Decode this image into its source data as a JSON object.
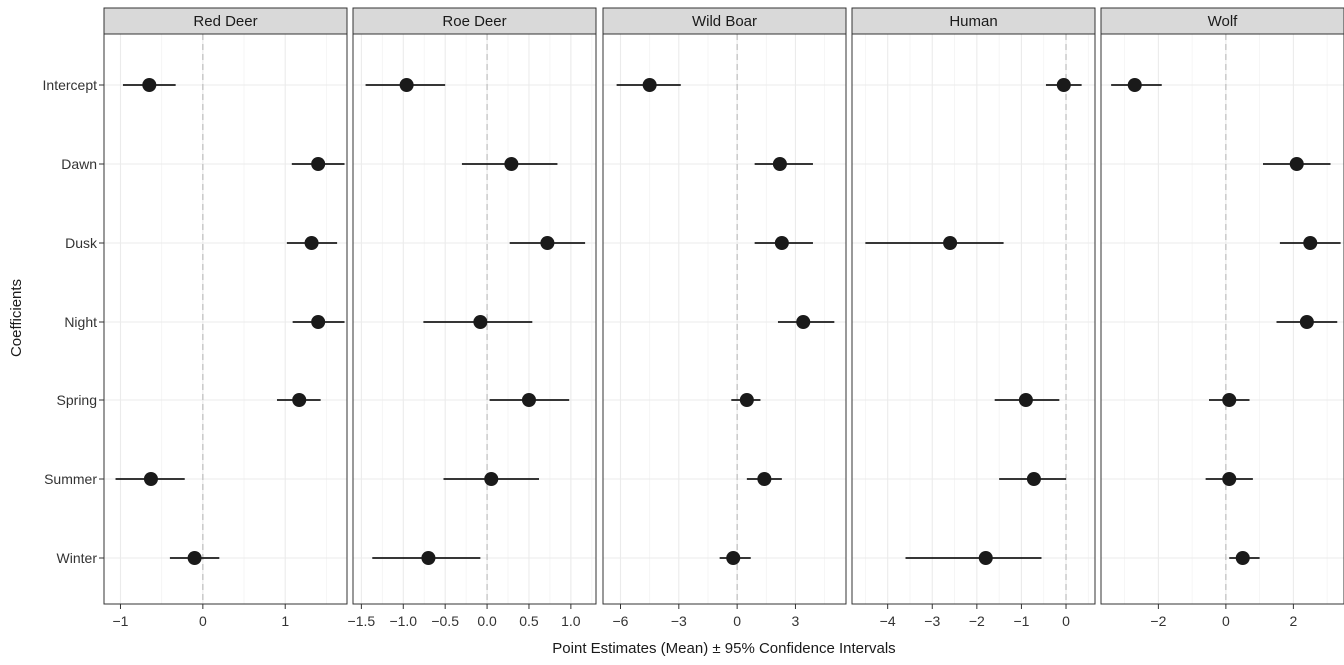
{
  "chart_data": {
    "type": "scatter",
    "subtype": "facetted coefficient plot with horizontal error bars",
    "xlabel": "Point Estimates (Mean) ± 95% Confidence Intervals",
    "ylabel": "Coefficients",
    "categories": [
      "Intercept",
      "Dawn",
      "Dusk",
      "Night",
      "Spring",
      "Summer",
      "Winter"
    ],
    "reference_line_x": 0,
    "grid": true,
    "legend": "none",
    "colors": {
      "point": "#1a1a1a",
      "strip_fill": "#d9d9d9",
      "grid": "#ebebeb",
      "reference": "#bdbdbd"
    },
    "facets": [
      {
        "title": "Red Deer",
        "xlim": [
          -1.2,
          1.75
        ],
        "xticks": [
          -1,
          0,
          1
        ],
        "xtick_labels": [
          "−1",
          "0",
          "1"
        ],
        "estimates": [
          -0.65,
          1.4,
          1.32,
          1.4,
          1.17,
          -0.63,
          -0.1
        ],
        "lower": [
          -0.97,
          1.08,
          1.02,
          1.09,
          0.9,
          -1.06,
          -0.4
        ],
        "upper": [
          -0.33,
          1.72,
          1.63,
          1.72,
          1.43,
          -0.22,
          0.2
        ]
      },
      {
        "title": "Roe Deer",
        "xlim": [
          -1.6,
          1.3
        ],
        "xticks": [
          -1.5,
          -1.0,
          -0.5,
          0.0,
          0.5,
          1.0
        ],
        "xtick_labels": [
          "−1.5",
          "−1.0",
          "−0.5",
          "0.0",
          "0.5",
          "1.0"
        ],
        "estimates": [
          -0.96,
          0.29,
          0.72,
          -0.08,
          0.5,
          0.05,
          -0.7
        ],
        "lower": [
          -1.45,
          -0.3,
          0.27,
          -0.76,
          0.03,
          -0.52,
          -1.37
        ],
        "upper": [
          -0.5,
          0.84,
          1.17,
          0.54,
          0.98,
          0.62,
          -0.08
        ]
      },
      {
        "title": "Wild Boar",
        "xlim": [
          -6.9,
          5.6
        ],
        "xticks": [
          -6,
          -3,
          0,
          3
        ],
        "xtick_labels": [
          "−6",
          "−3",
          "0",
          "3"
        ],
        "estimates": [
          -4.5,
          2.2,
          2.3,
          3.4,
          0.5,
          1.4,
          -0.2
        ],
        "lower": [
          -6.2,
          0.9,
          0.9,
          2.1,
          -0.3,
          0.5,
          -0.9
        ],
        "upper": [
          -2.9,
          3.9,
          3.9,
          5.0,
          1.2,
          2.3,
          0.7
        ]
      },
      {
        "title": "Human",
        "xlim": [
          -4.8,
          0.65
        ],
        "xticks": [
          -4,
          -3,
          -2,
          -1,
          0
        ],
        "xtick_labels": [
          "−4",
          "−3",
          "−2",
          "−1",
          "0"
        ],
        "estimates": [
          -0.05,
          null,
          -2.6,
          null,
          -0.9,
          -0.72,
          -1.8
        ],
        "lower": [
          -0.45,
          null,
          -4.5,
          null,
          -1.6,
          -1.5,
          -3.6
        ],
        "upper": [
          0.35,
          null,
          -1.4,
          null,
          -0.15,
          0.0,
          -0.55
        ]
      },
      {
        "title": "Wolf",
        "xlim": [
          -3.7,
          3.5
        ],
        "xticks": [
          -2,
          0,
          2
        ],
        "xtick_labels": [
          "−2",
          "0",
          "2"
        ],
        "estimates": [
          -2.7,
          2.1,
          2.5,
          2.4,
          0.1,
          0.1,
          0.5
        ],
        "lower": [
          -3.4,
          1.1,
          1.6,
          1.5,
          -0.5,
          -0.6,
          0.1
        ],
        "upper": [
          -1.9,
          3.1,
          3.4,
          3.3,
          0.7,
          0.8,
          1.0
        ]
      }
    ]
  }
}
